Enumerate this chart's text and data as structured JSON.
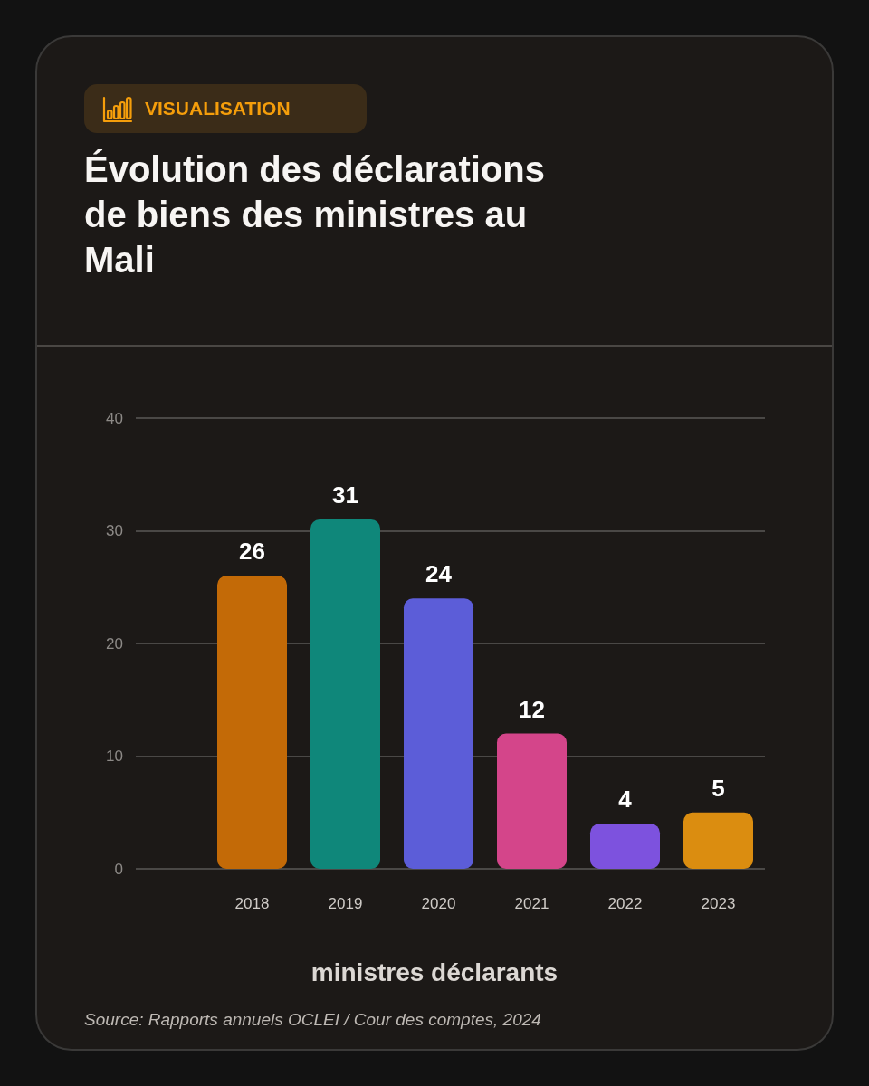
{
  "chart_data": {
    "type": "bar",
    "title": "Évolution des déclarations de biens des ministres au Mali",
    "subtitle": "VISUALISATION",
    "xlabel": "ministres déclarants",
    "annotations": [
      "Source: Rapports annuels OCLEI / Cour des comptes, 2024"
    ],
    "categories": [
      "2018",
      "2019",
      "2020",
      "2021",
      "2022",
      "2023"
    ],
    "values": [
      26,
      31,
      24,
      12,
      4,
      5
    ],
    "colors": [
      "#c36a07",
      "#0f877a",
      "#5c5dd8",
      "#d4458a",
      "#7d52de",
      "#db8d10"
    ],
    "ylim": [
      0,
      40
    ],
    "yticks": [
      0,
      10,
      20,
      30,
      40
    ],
    "grid": "y",
    "data_labels": true
  }
}
